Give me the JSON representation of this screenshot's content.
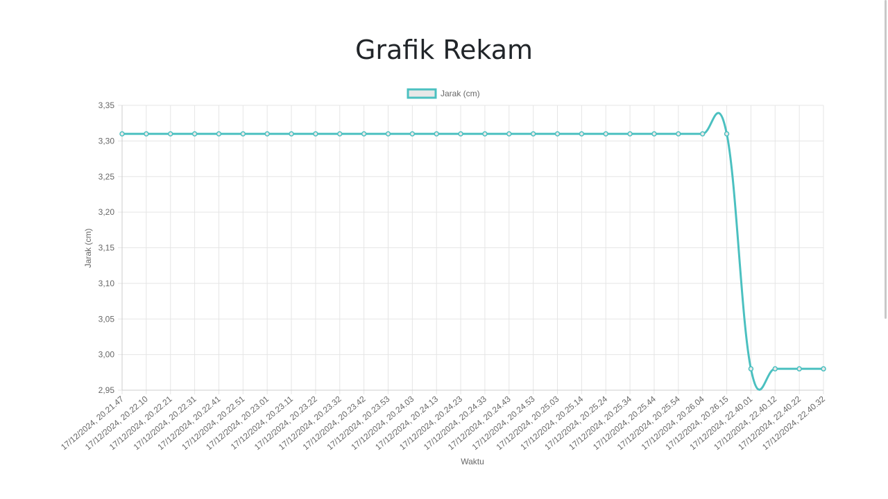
{
  "page": {
    "title": "Grafik Rekam"
  },
  "colors": {
    "line": "#4bc0c0",
    "legend_fill": "#e8e8e8",
    "grid": "#e5e5e5",
    "axis": "#cccccc",
    "text": "#666666"
  },
  "chart_data": {
    "type": "line",
    "legend_placement": "top-center",
    "grid": true,
    "xlabel": "Waktu",
    "ylabel": "Jarak (cm)",
    "ylim": [
      2.95,
      3.35
    ],
    "yticks": [
      "3,35",
      "3,30",
      "3,25",
      "3,20",
      "3,15",
      "3,10",
      "3,05",
      "3,00",
      "2,95"
    ],
    "ytick_values": [
      3.35,
      3.3,
      3.25,
      3.2,
      3.15,
      3.1,
      3.05,
      3.0,
      2.95
    ],
    "categories": [
      "17/12/2024, 20.21.47",
      "17/12/2024, 20.22.10",
      "17/12/2024, 20.22.21",
      "17/12/2024, 20.22.31",
      "17/12/2024, 20.22.41",
      "17/12/2024, 20.22.51",
      "17/12/2024, 20.23.01",
      "17/12/2024, 20.23.11",
      "17/12/2024, 20.23.22",
      "17/12/2024, 20.23.32",
      "17/12/2024, 20.23.42",
      "17/12/2024, 20.23.53",
      "17/12/2024, 20.24.03",
      "17/12/2024, 20.24.13",
      "17/12/2024, 20.24.23",
      "17/12/2024, 20.24.33",
      "17/12/2024, 20.24.43",
      "17/12/2024, 20.24.53",
      "17/12/2024, 20.25.03",
      "17/12/2024, 20.25.14",
      "17/12/2024, 20.25.24",
      "17/12/2024, 20.25.34",
      "17/12/2024, 20.25.44",
      "17/12/2024, 20.25.54",
      "17/12/2024, 20.26.04",
      "17/12/2024, 20.26.15",
      "17/12/2024, 22.40.01",
      "17/12/2024, 22.40.12",
      "17/12/2024, 22.40.22",
      "17/12/2024, 22.40.32"
    ],
    "series": [
      {
        "name": "Jarak (cm)",
        "values": [
          3.31,
          3.31,
          3.31,
          3.31,
          3.31,
          3.31,
          3.31,
          3.31,
          3.31,
          3.31,
          3.31,
          3.31,
          3.31,
          3.31,
          3.31,
          3.31,
          3.31,
          3.31,
          3.31,
          3.31,
          3.31,
          3.31,
          3.31,
          3.31,
          3.31,
          3.31,
          2.98,
          2.98,
          2.98,
          2.98
        ]
      }
    ]
  }
}
